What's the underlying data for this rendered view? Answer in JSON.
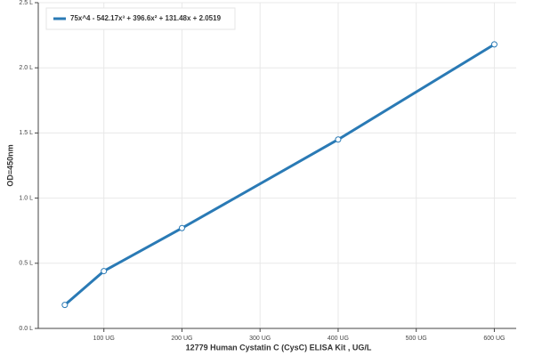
{
  "chart_data": {
    "type": "line",
    "x_label": "12779 Human Cystatin C (CysC) ELISA Kit , UG/L",
    "y_label": "OD=450nm",
    "x": [
      50,
      100,
      200,
      400,
      600
    ],
    "series": [
      {
        "name": "75x^4 - 542.17x³ + 396.6x² + 131.48x + 2.0519",
        "color": "#2a7ab5",
        "values": [
          0.18,
          0.44,
          0.77,
          1.45,
          2.18
        ]
      }
    ],
    "xlim": [
      16,
      628
    ],
    "xticks": [
      {
        "value": 100,
        "label": "100 UG"
      },
      {
        "value": 200,
        "label": "200 UG"
      },
      {
        "value": 300,
        "label": "300 UG"
      },
      {
        "value": 400,
        "label": "400 UG"
      },
      {
        "value": 500,
        "label": "500 UG"
      },
      {
        "value": 600,
        "label": "600 UG"
      }
    ],
    "ylim": [
      0,
      2.5
    ],
    "yticks": [
      {
        "value": 0,
        "label": "0.0 L"
      },
      {
        "value": 0.5,
        "label": "0.5 L"
      },
      {
        "value": 1,
        "label": "1.0 L"
      },
      {
        "value": 1.5,
        "label": "1.5 L"
      },
      {
        "value": 2,
        "label": "2.0 L"
      },
      {
        "value": 2.5,
        "label": "2.5 L"
      }
    ],
    "grid": true,
    "legend": "top-left"
  }
}
